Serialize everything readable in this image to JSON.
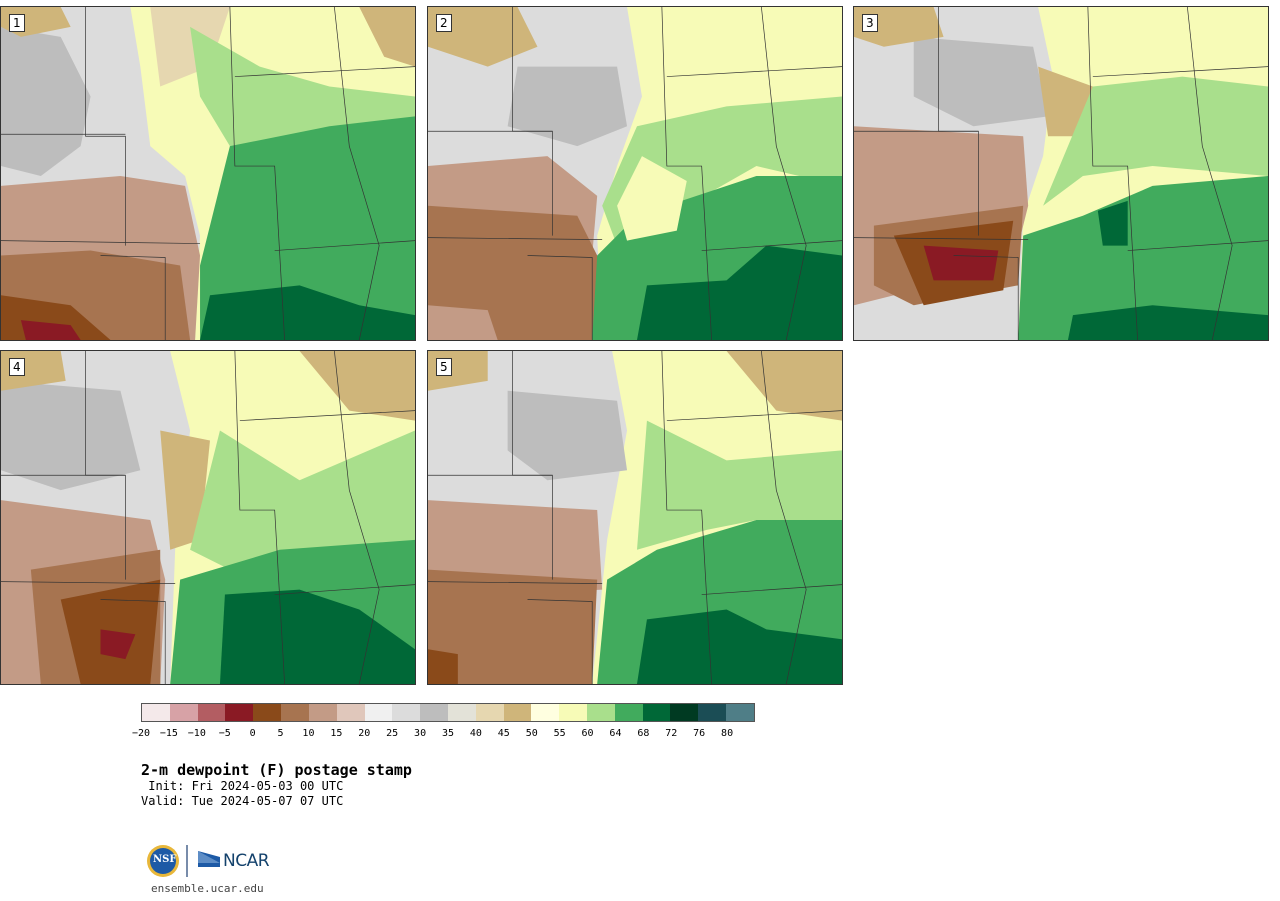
{
  "panels": [
    {
      "num": "1"
    },
    {
      "num": "2"
    },
    {
      "num": "3"
    },
    {
      "num": "4"
    },
    {
      "num": "5"
    }
  ],
  "legend": {
    "colors": [
      "#f4e9ea",
      "#d7a2a6",
      "#b35d62",
      "#8a1a24",
      "#8a4a1a",
      "#a77450",
      "#c39b86",
      "#e0c7bb",
      "#f0f0f0",
      "#dcdcdc",
      "#bdbdbd",
      "#e3e2d8",
      "#e6d7b0",
      "#cfb57a",
      "#ffffe0",
      "#f7fbb7",
      "#a9df8c",
      "#41ab5d",
      "#006837",
      "#003a22",
      "#1b4d55",
      "#4f7e87"
    ],
    "ticks": [
      "−20",
      "−15",
      "−10",
      "−5",
      "0",
      "5",
      "10",
      "15",
      "20",
      "25",
      "30",
      "35",
      "40",
      "45",
      "50",
      "55",
      "60",
      "64",
      "68",
      "72",
      "76",
      "80"
    ]
  },
  "title": "2-m dewpoint (F) postage stamp",
  "init": " Init: Fri 2024-05-03 00 UTC",
  "valid": "Valid: Tue 2024-05-07 07 UTC",
  "logo": {
    "nsf": "NSF",
    "ncar": "NCAR"
  },
  "site": "ensemble.ucar.edu"
}
